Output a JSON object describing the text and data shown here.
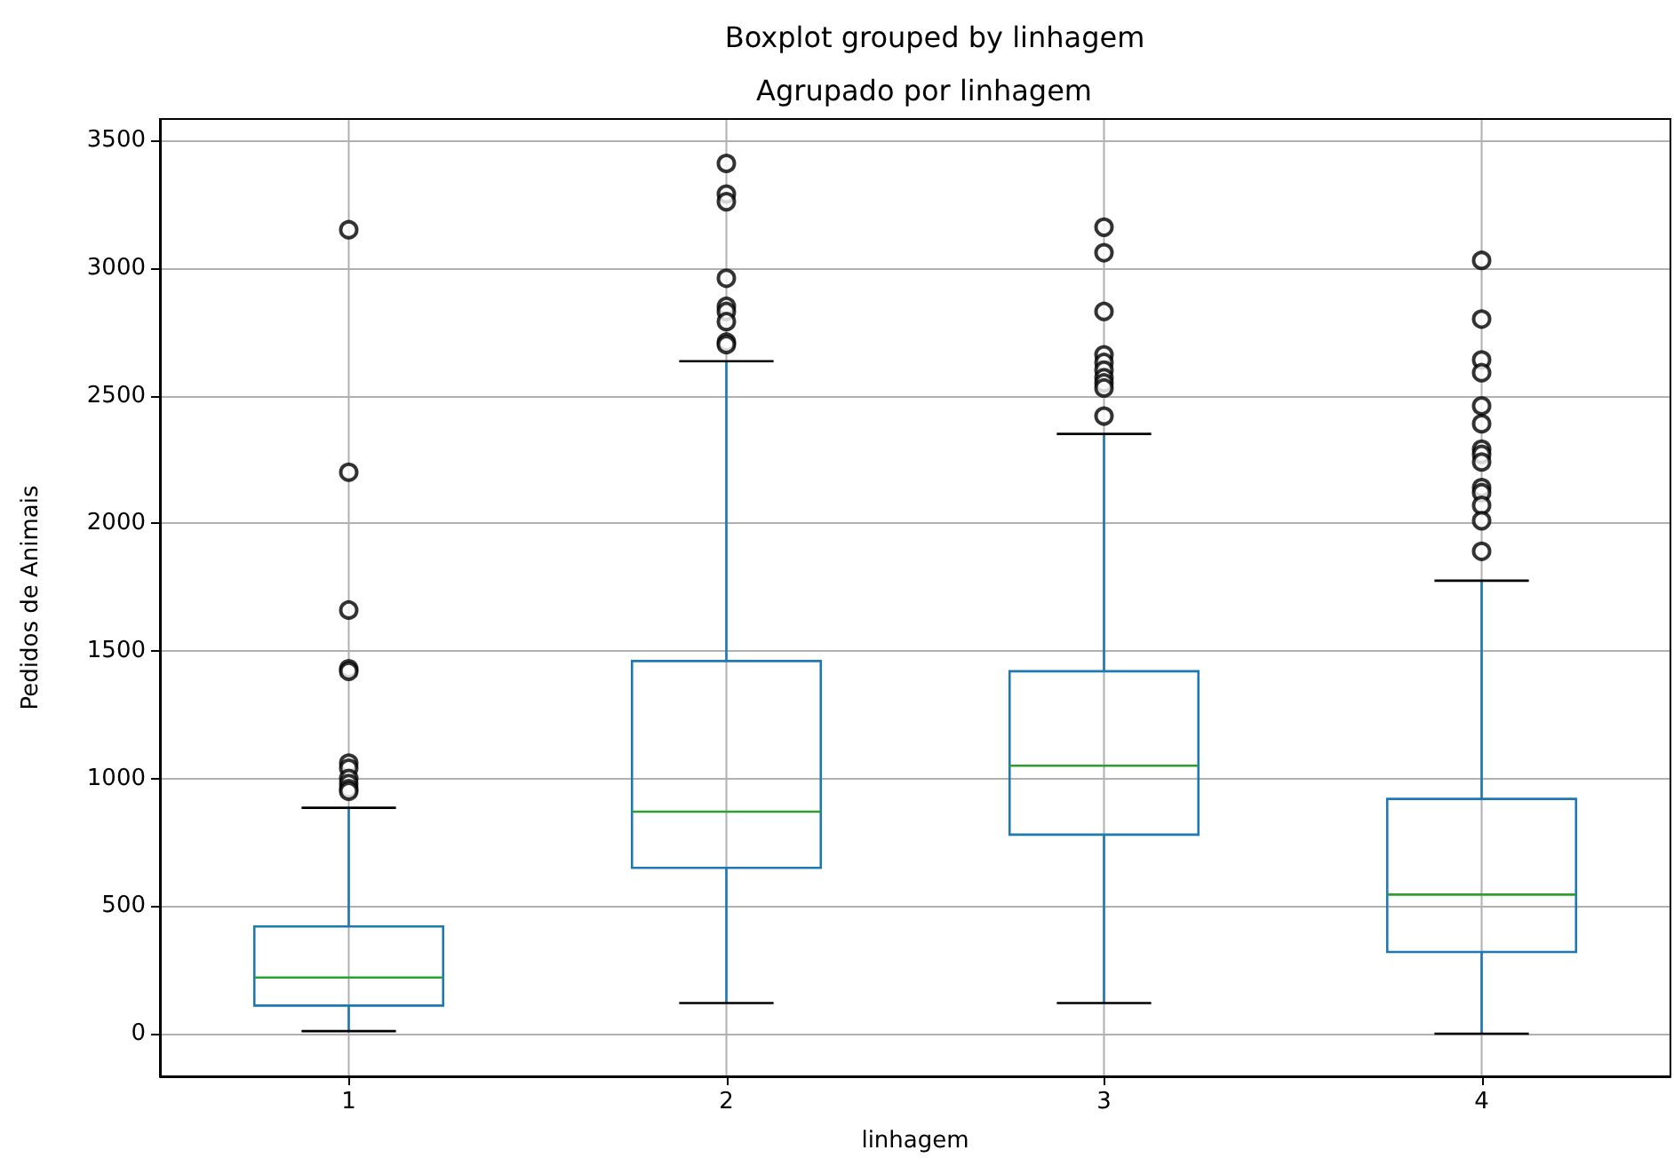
{
  "chart_data": {
    "type": "box",
    "title": "Boxplot grouped by linhagem",
    "subtitle": "Agrupado por linhagem",
    "xlabel": "linhagem",
    "ylabel": "Pedidos de Animais",
    "categories": [
      "1",
      "2",
      "3",
      "4"
    ],
    "boxes": [
      {
        "low": 10,
        "q1": 110,
        "median": 220,
        "q3": 420,
        "high": 885,
        "outliers": [
          3150,
          2200,
          1660,
          1430,
          1420,
          1060,
          1040,
          1000,
          980,
          960,
          950
        ]
      },
      {
        "low": 120,
        "q1": 650,
        "median": 870,
        "q3": 1460,
        "high": 2635,
        "outliers": [
          3410,
          3290,
          3260,
          2960,
          2850,
          2830,
          2790,
          2710,
          2700
        ]
      },
      {
        "low": 120,
        "q1": 780,
        "median": 1050,
        "q3": 1420,
        "high": 2350,
        "outliers": [
          3160,
          3060,
          2830,
          2660,
          2630,
          2600,
          2570,
          2550,
          2530,
          2420
        ]
      },
      {
        "low": 0,
        "q1": 320,
        "median": 545,
        "q3": 920,
        "high": 1775,
        "outliers": [
          3030,
          2800,
          2640,
          2590,
          2460,
          2390,
          2290,
          2270,
          2240,
          2140,
          2120,
          2070,
          2010,
          1890
        ]
      }
    ],
    "ylim": [
      -167,
      3584
    ],
    "yticks": [
      0,
      500,
      1000,
      1500,
      2000,
      2500,
      3000,
      3500
    ],
    "grid": true,
    "marker": "circle"
  }
}
